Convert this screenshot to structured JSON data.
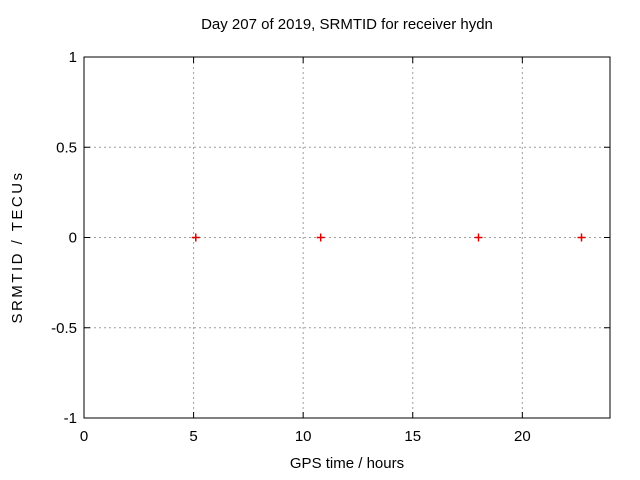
{
  "chart_data": {
    "type": "scatter",
    "title": "Day 207 of 2019, SRMTID for receiver hydn",
    "xlabel": "GPS time / hours",
    "ylabel": "SRMTID / TECUs",
    "xlim": [
      0,
      24
    ],
    "ylim": [
      -1,
      1
    ],
    "xticks": [
      {
        "value": 0,
        "label": "0"
      },
      {
        "value": 5,
        "label": "5"
      },
      {
        "value": 10,
        "label": "10"
      },
      {
        "value": 15,
        "label": "15"
      },
      {
        "value": 20,
        "label": "20"
      }
    ],
    "yticks": [
      {
        "value": 1,
        "label": "1"
      },
      {
        "value": 0.5,
        "label": "0.5"
      },
      {
        "value": 0,
        "label": "0"
      },
      {
        "value": -0.5,
        "label": "-0.5"
      },
      {
        "value": -1,
        "label": "-1"
      }
    ],
    "grid": true,
    "legend": "none",
    "series": [
      {
        "name": "SRMTID",
        "marker": "plus",
        "color": "#e00000",
        "points": [
          {
            "x": 5.1,
            "y": 0
          },
          {
            "x": 10.8,
            "y": 0
          },
          {
            "x": 18.0,
            "y": 0
          },
          {
            "x": 22.7,
            "y": 0
          }
        ]
      }
    ]
  }
}
